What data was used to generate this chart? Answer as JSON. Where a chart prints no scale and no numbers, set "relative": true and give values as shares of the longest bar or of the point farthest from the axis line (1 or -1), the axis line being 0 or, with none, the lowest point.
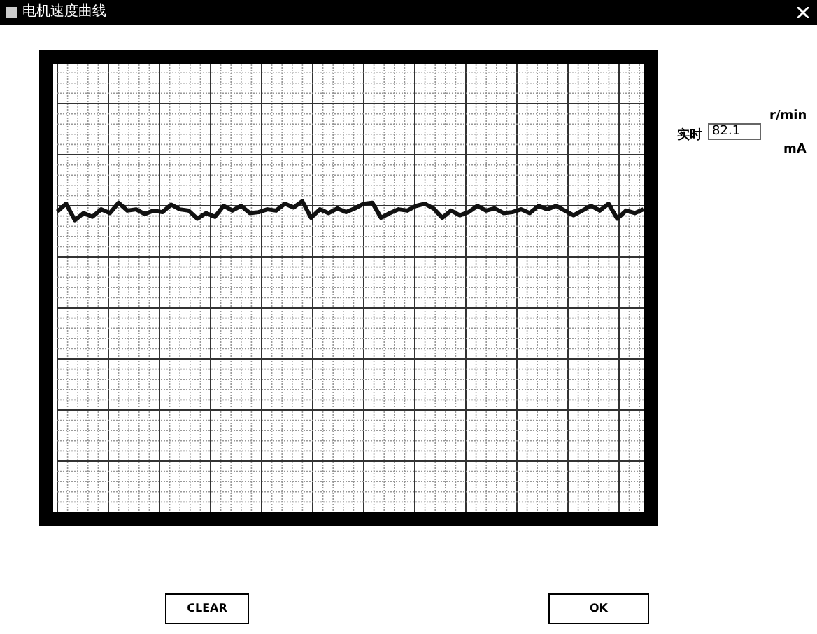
{
  "chart_data": {
    "type": "line",
    "title": "电机速度曲线",
    "relative": true,
    "grid": true,
    "legend": false,
    "marker": "none",
    "line_style": "solid",
    "categories": [
      null,
      null,
      null,
      null,
      null,
      null,
      null,
      null,
      null,
      null,
      null,
      null,
      null,
      null,
      null,
      null,
      null,
      null,
      null,
      null,
      null,
      null,
      null,
      null,
      null,
      null,
      null,
      null,
      null,
      null,
      null,
      null,
      null,
      null,
      null,
      null,
      null,
      null,
      null,
      null,
      null,
      null,
      null,
      null,
      null,
      null,
      null,
      null,
      null,
      null,
      null,
      null,
      null,
      null,
      null,
      null,
      null,
      null,
      null,
      null,
      null,
      null,
      null,
      null,
      null,
      null,
      null,
      null
    ],
    "series": [
      {
        "color": "#111111",
        "values": [
          0.967,
          0.992,
          0.939,
          0.962,
          0.95,
          0.974,
          0.962,
          0.995,
          0.97,
          0.974,
          0.959,
          0.97,
          0.965,
          0.989,
          0.974,
          0.97,
          0.944,
          0.962,
          0.95,
          0.985,
          0.97,
          0.985,
          0.962,
          0.965,
          0.974,
          0.97,
          0.992,
          0.98,
          1,
          0.947,
          0.974,
          0.962,
          0.977,
          0.965,
          0.977,
          0.992,
          0.995,
          0.947,
          0.962,
          0.974,
          0.97,
          0.985,
          0.992,
          0.977,
          0.947,
          0.97,
          0.955,
          0.965,
          0.985,
          0.97,
          0.977,
          0.962,
          0.965,
          0.974,
          0.962,
          0.985,
          0.974,
          0.985,
          0.97,
          0.955,
          0.97,
          0.985,
          0.97,
          0.992,
          0.944,
          0.97,
          0.962,
          0.974
        ]
      }
    ],
    "annotations": [
      "实时",
      "82.1",
      "r/min",
      "mA",
      "CLEAR",
      "OK"
    ]
  }
}
